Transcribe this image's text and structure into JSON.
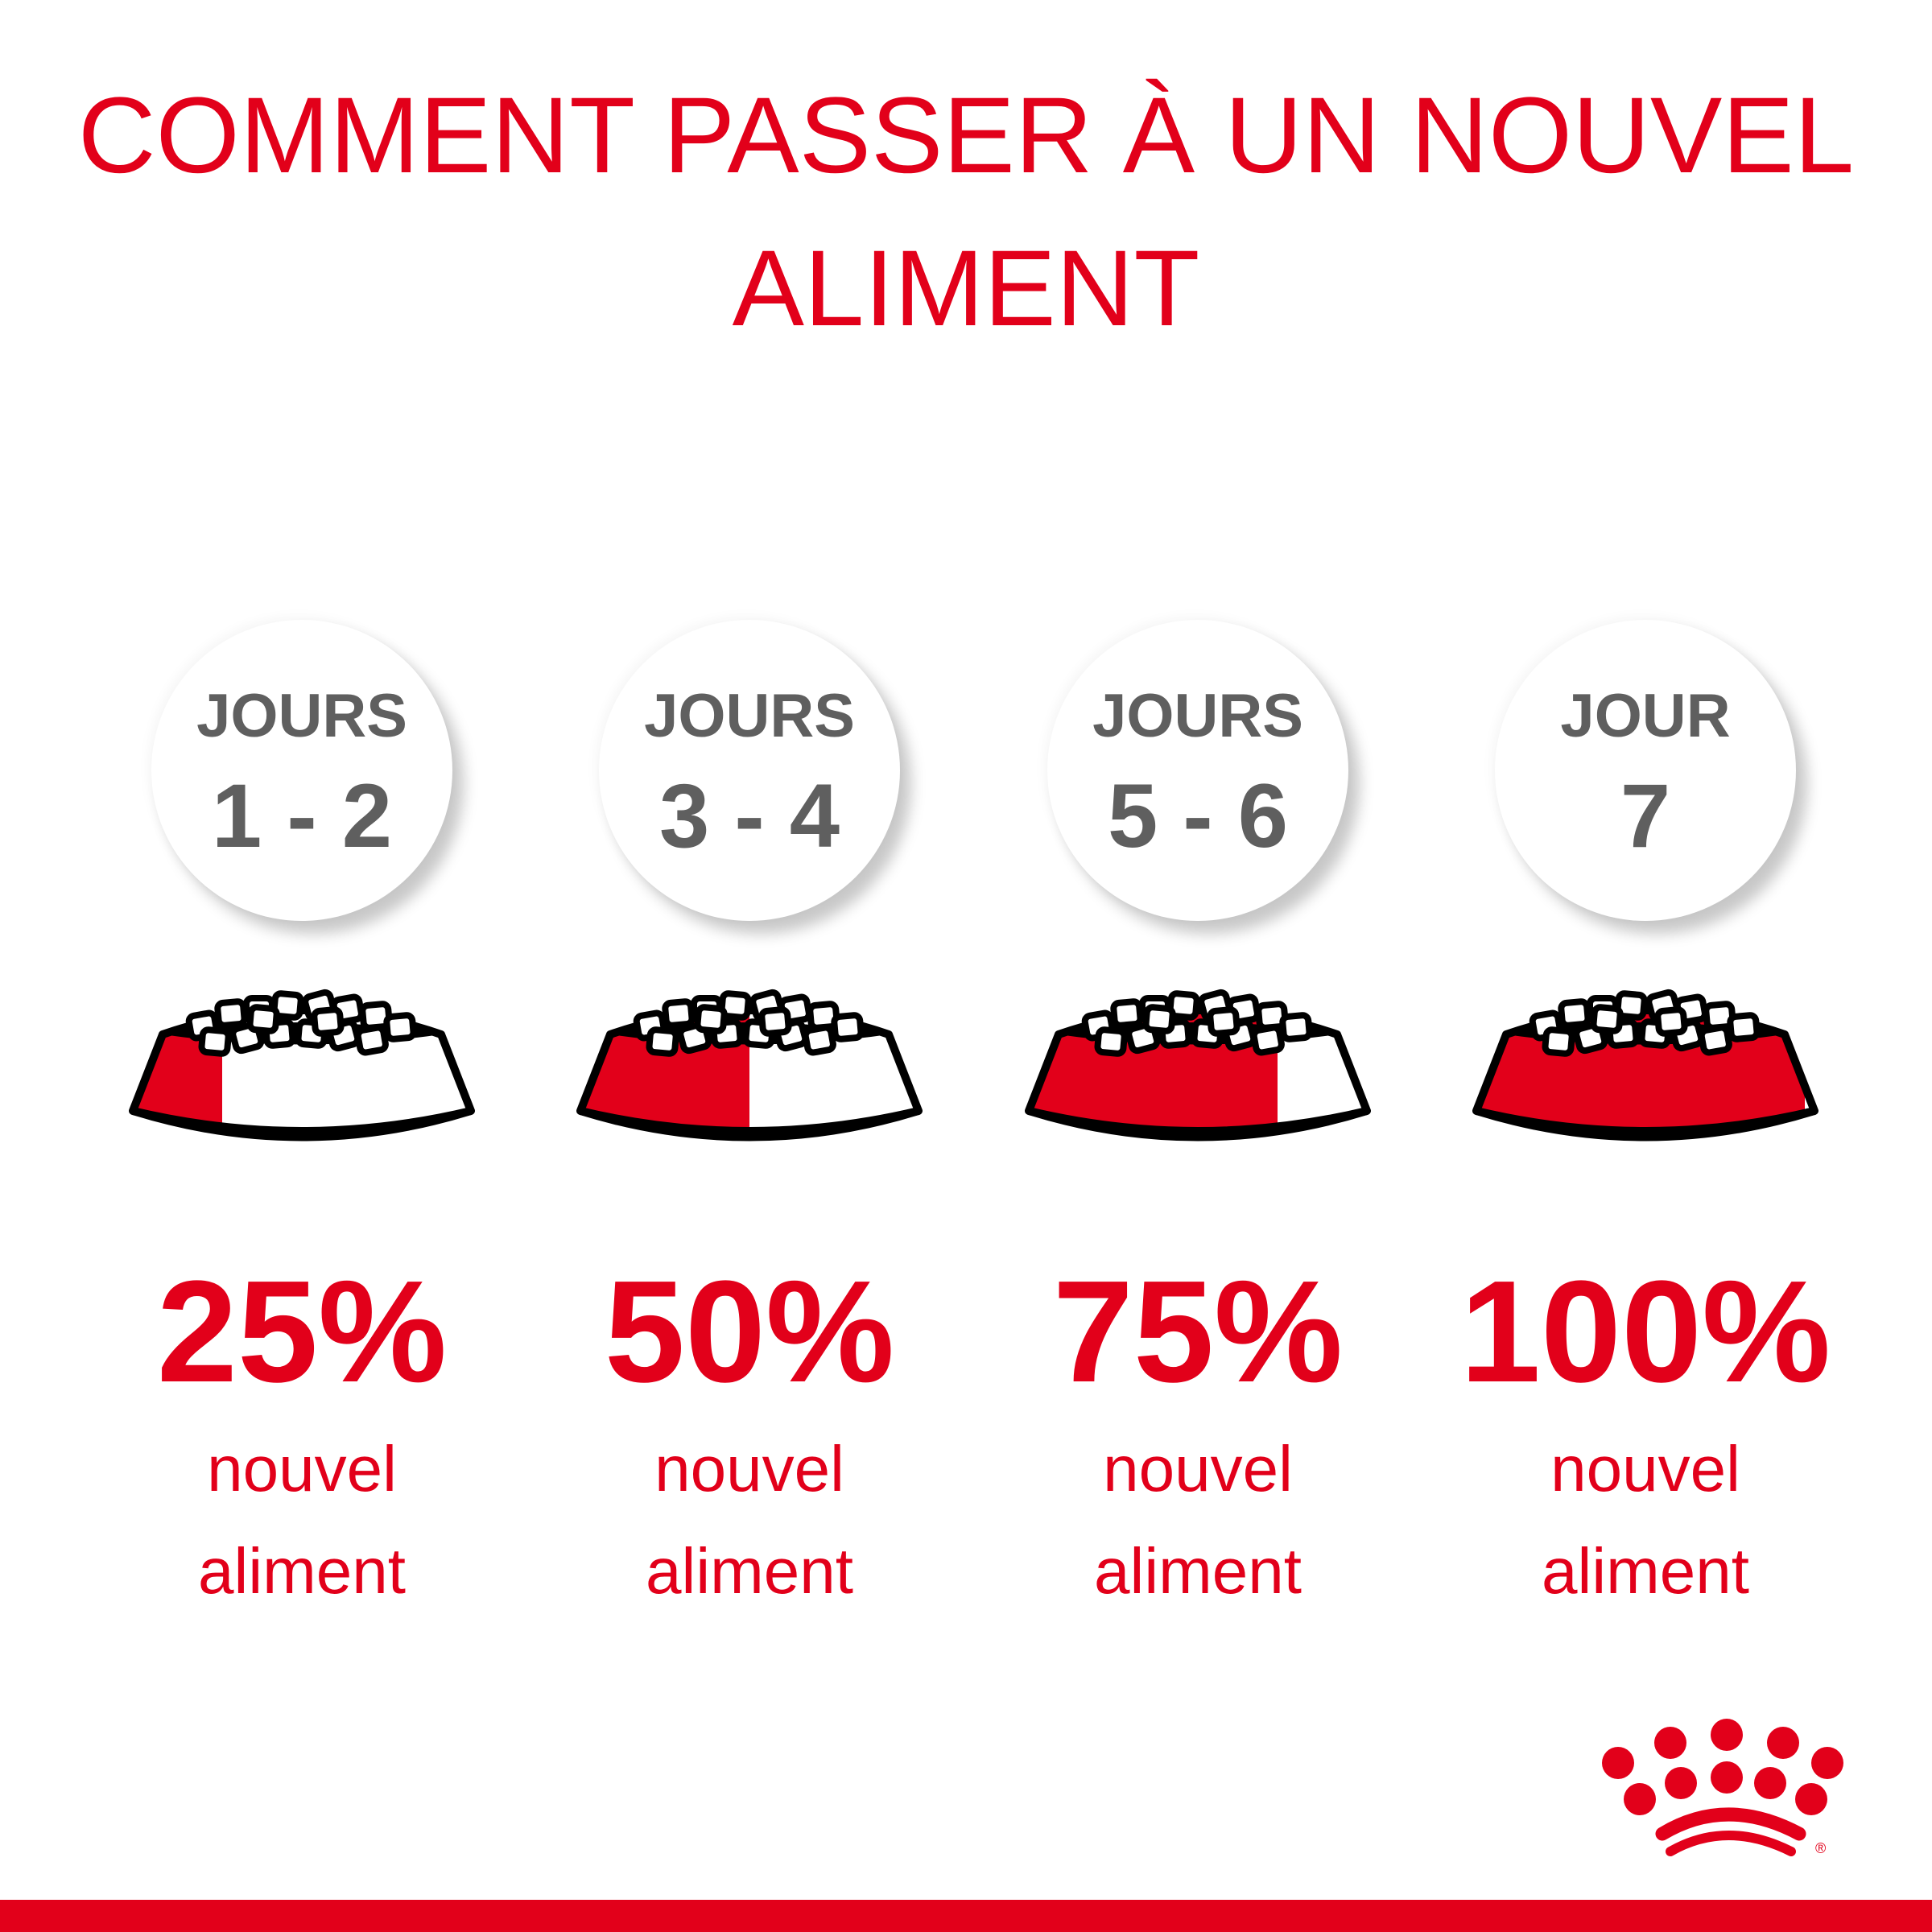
{
  "title": {
    "line1": "COMMENT PASSER À UN NOUVEL",
    "line2": "ALIMENT"
  },
  "colors": {
    "brand_red": "#e2001a",
    "text_grey": "#5f5f5f"
  },
  "steps": [
    {
      "label": "JOURS",
      "days": "1 - 2",
      "percent": "25%",
      "new_food_fraction": 0.25,
      "caption1": "nouvel",
      "caption2": "aliment"
    },
    {
      "label": "JOURS",
      "days": "3 - 4",
      "percent": "50%",
      "new_food_fraction": 0.5,
      "caption1": "nouvel",
      "caption2": "aliment"
    },
    {
      "label": "JOURS",
      "days": "5 - 6",
      "percent": "75%",
      "new_food_fraction": 0.75,
      "caption1": "nouvel",
      "caption2": "aliment"
    },
    {
      "label": "JOUR",
      "days": "7",
      "percent": "100%",
      "new_food_fraction": 1.0,
      "caption1": "nouvel",
      "caption2": "aliment"
    }
  ],
  "logo": {
    "name": "royal-canin-crown-logo",
    "mark": "®"
  }
}
